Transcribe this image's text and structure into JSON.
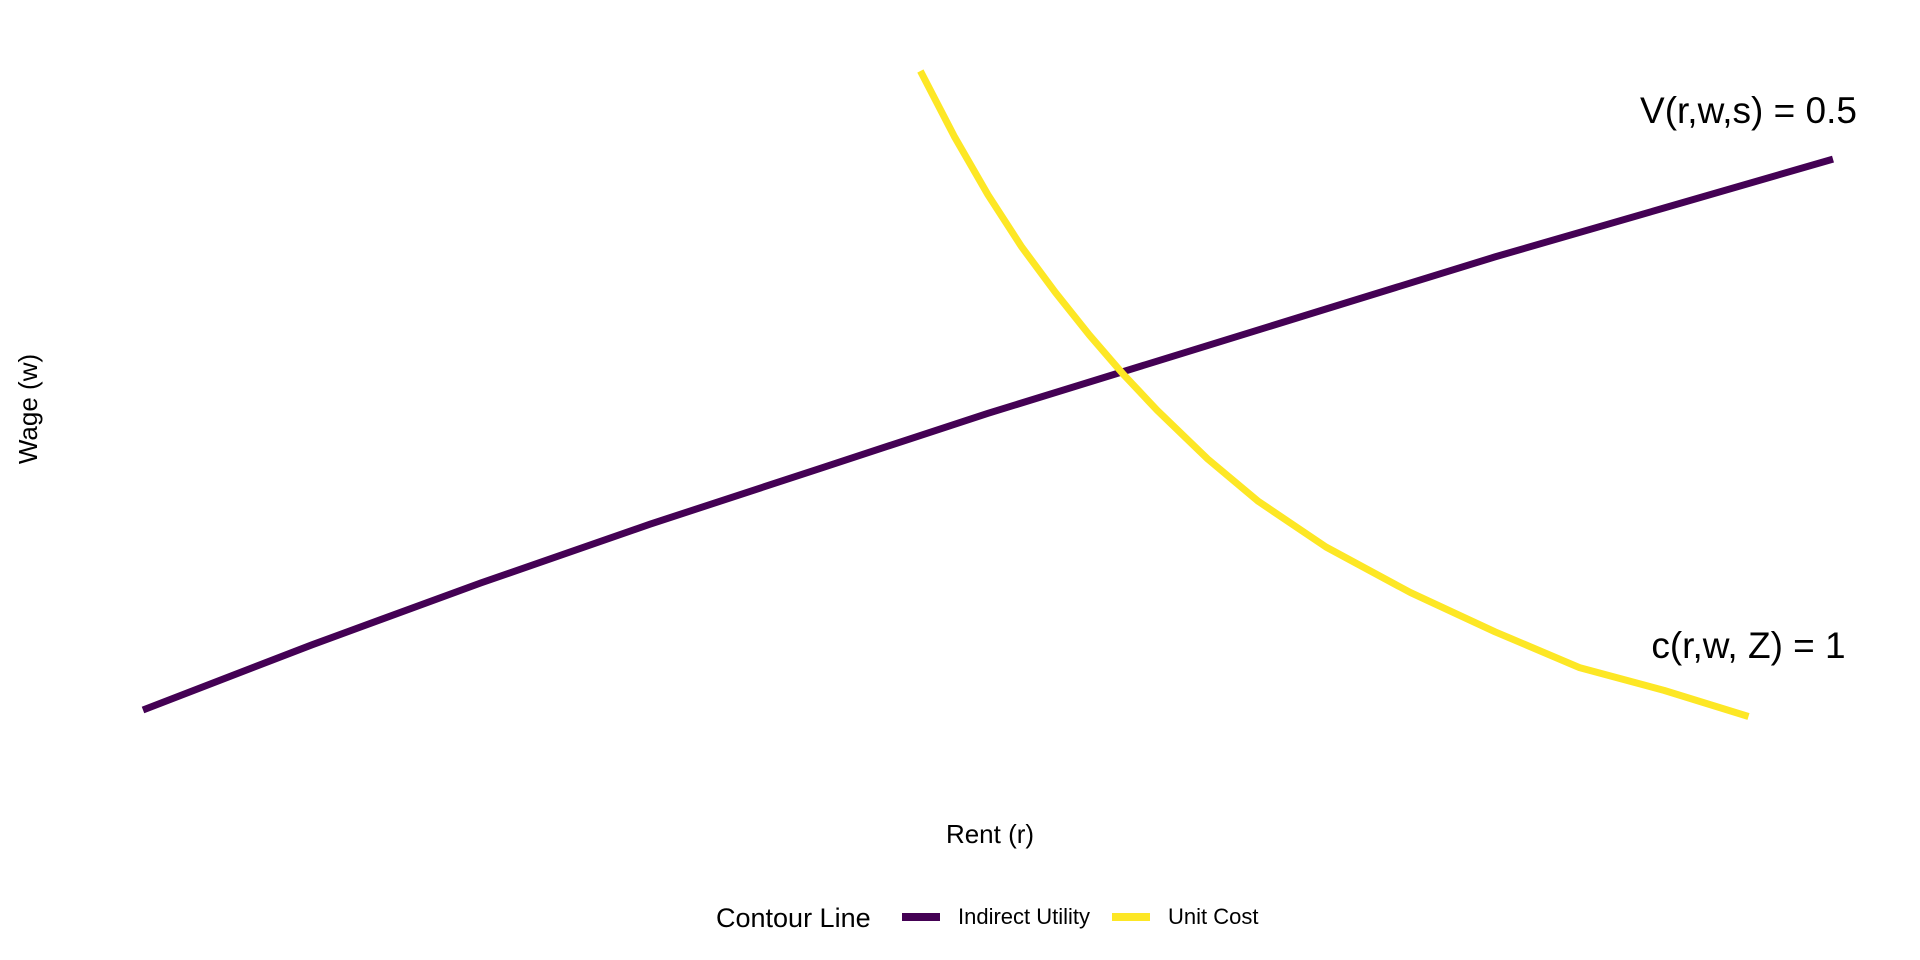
{
  "chart_data": {
    "type": "line",
    "title": "",
    "xlabel": "Rent (r)",
    "ylabel": "Wage (w)",
    "xticks": [],
    "yticks": [],
    "grid": false,
    "xlim": [
      0,
      10
    ],
    "ylim": [
      0,
      10
    ],
    "legend": {
      "title": "Contour Line",
      "position": "bottom",
      "items": [
        {
          "label": "Indirect Utility",
          "color": "#440154"
        },
        {
          "label": "Unit Cost",
          "color": "#FDE725"
        }
      ]
    },
    "series": [
      {
        "name": "Indirect Utility",
        "color": "#440154",
        "x": [
          0.0,
          1.0,
          2.0,
          3.0,
          4.0,
          5.0,
          6.0,
          7.0,
          8.0,
          9.0,
          10.0
        ],
        "y": [
          0.0,
          1.0,
          1.95,
          2.85,
          3.7,
          4.55,
          5.35,
          6.15,
          6.95,
          7.7,
          8.45
        ]
      },
      {
        "name": "Unit Cost",
        "color": "#FDE725",
        "x": [
          4.6,
          4.8,
          5.0,
          5.2,
          5.4,
          5.6,
          5.8,
          6.0,
          6.3,
          6.6,
          7.0,
          7.5,
          8.0,
          8.5,
          9.0,
          9.5
        ],
        "y": [
          9.8,
          8.8,
          7.9,
          7.1,
          6.4,
          5.75,
          5.15,
          4.6,
          3.85,
          3.2,
          2.5,
          1.8,
          1.2,
          0.65,
          0.3,
          -0.1
        ]
      }
    ],
    "annotations": [
      {
        "text": "V(r,w,s) = 0.5",
        "x": 9.5,
        "y": 9.0
      },
      {
        "text": "c(r,w, Z) = 1",
        "x": 9.5,
        "y": 0.8
      }
    ]
  }
}
